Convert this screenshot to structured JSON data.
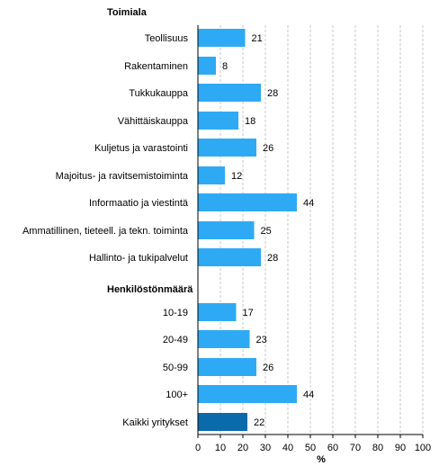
{
  "chart_data": {
    "type": "bar",
    "orientation": "horizontal",
    "sections": [
      {
        "title": "Toimiala",
        "start_row": 0
      },
      {
        "title": "Henkilöstönmäärä",
        "start_row": 10
      }
    ],
    "categories": [
      "Teollisuus",
      "Rakentaminen",
      "Tukkukauppa",
      "Vähittäiskauppa",
      "Kuljetus ja varastointi",
      "Majoitus- ja ravitsemistoiminta",
      "Informaatio ja viestintä",
      "Ammatillinen, tieteell. ja tekn. toiminta",
      "Hallinto- ja tukipalvelut",
      "10-19",
      "20-49",
      "50-99",
      "100+",
      "Kaikki yritykset"
    ],
    "values": [
      21,
      8,
      28,
      18,
      26,
      12,
      44,
      25,
      28,
      17,
      23,
      26,
      44,
      22
    ],
    "highlight_index": 13,
    "xlabel": "%",
    "xlim": [
      0,
      100
    ],
    "xticks": [
      "0",
      "10",
      "20",
      "30",
      "40",
      "50",
      "60",
      "70",
      "80",
      "90",
      "100"
    ],
    "grid": true,
    "colors": {
      "bar": "#2eaaf4",
      "highlight": "#0b6aaa",
      "grid": "#c8c8c8",
      "axis": "#000000"
    }
  }
}
